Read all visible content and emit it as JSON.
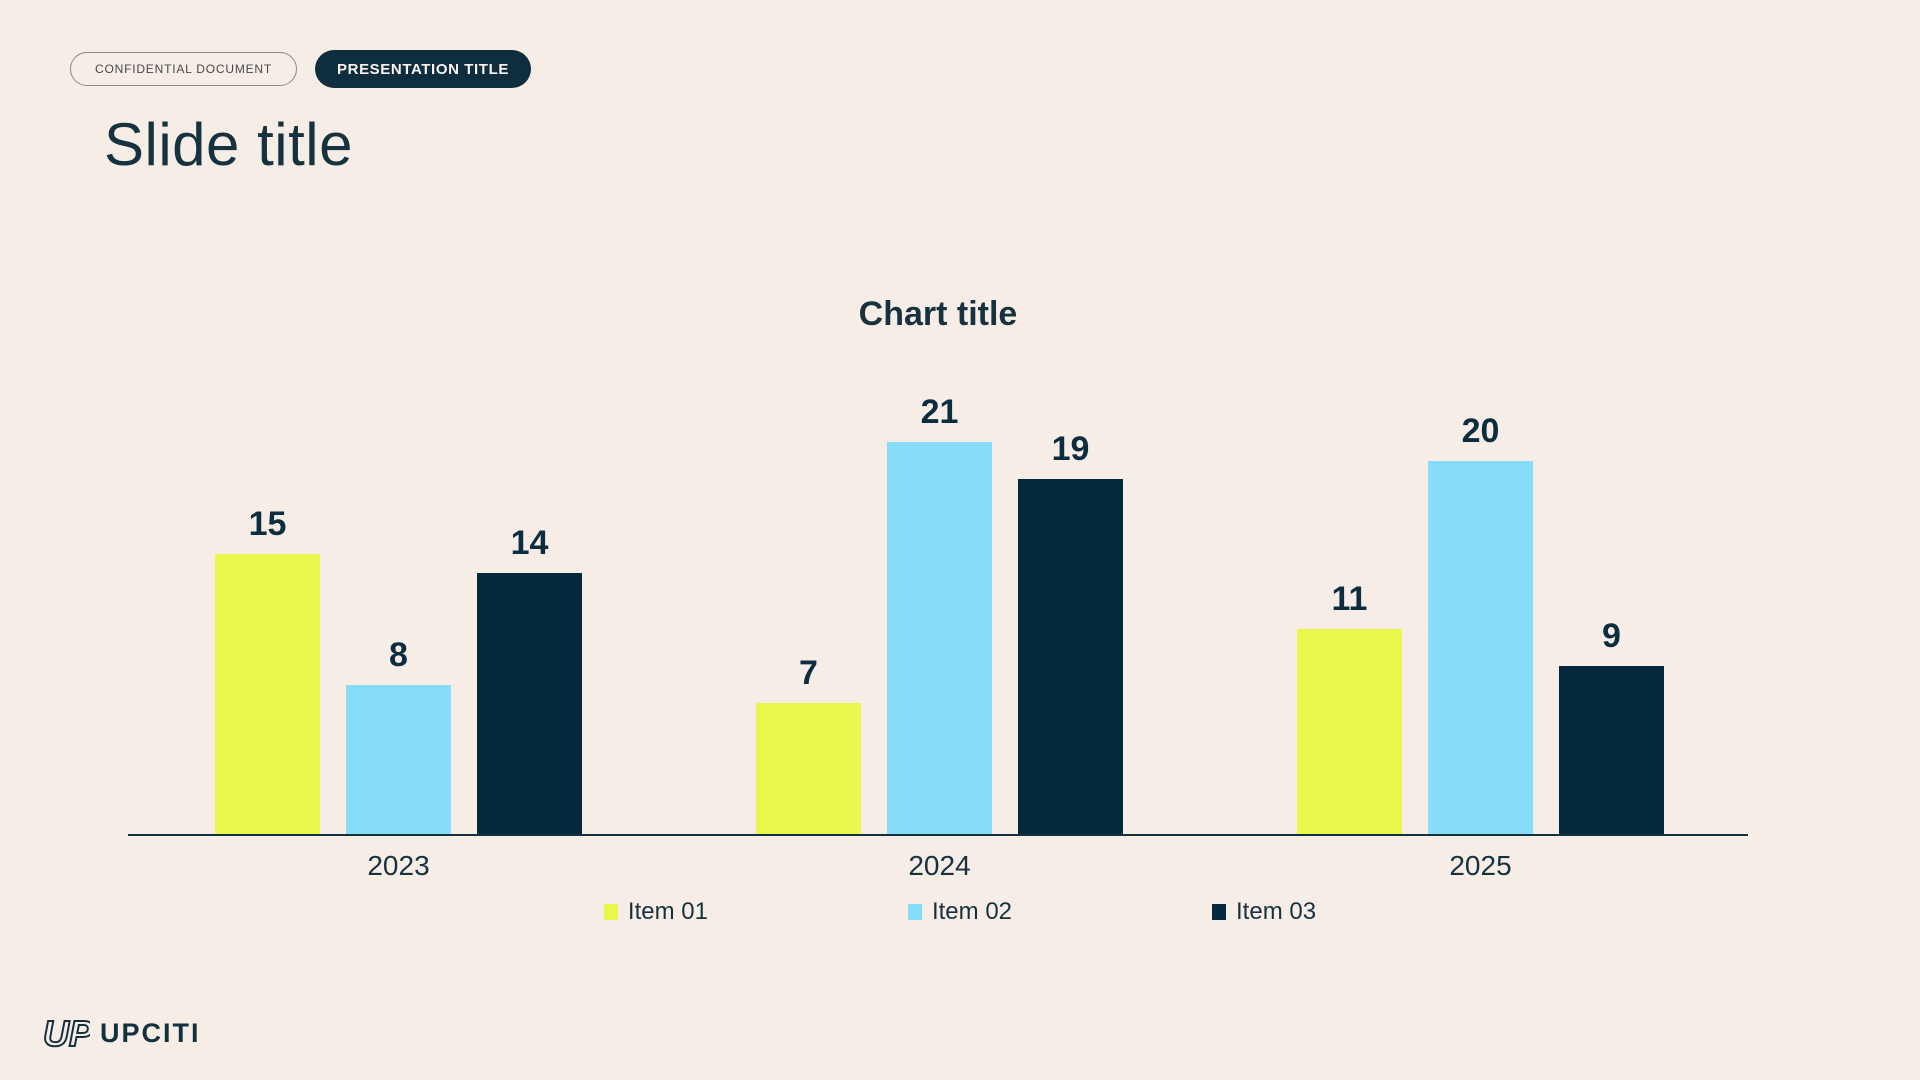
{
  "page": {
    "background_color": "#f7ede7",
    "text_color": "#16323f"
  },
  "header": {
    "confidential_badge_label": "CONFIDENTIAL DOCUMENT",
    "presentation_badge_label": "PRESENTATION TITLE",
    "badge_fill_color": "#0e2d3e"
  },
  "slide_title": "Slide title",
  "chart_data": {
    "type": "bar",
    "title": "Chart title",
    "categories": [
      "2023",
      "2024",
      "2025"
    ],
    "series": [
      {
        "name": "Item 01",
        "color": "#e9f64b",
        "values": [
          15,
          7,
          11
        ]
      },
      {
        "name": "Item 02",
        "color": "#87dcfa",
        "values": [
          8,
          21,
          20
        ]
      },
      {
        "name": "Item 03",
        "color": "#04293c",
        "values": [
          14,
          19,
          9
        ]
      }
    ],
    "ylim": [
      0,
      21
    ],
    "grid": false,
    "legend_position": "bottom",
    "value_labels_shown": true,
    "axis_line_color": "#13303d",
    "xlabel": "",
    "ylabel": ""
  },
  "footer": {
    "logo_text": "UPCITI",
    "logo_icon": "up-monogram-icon"
  }
}
